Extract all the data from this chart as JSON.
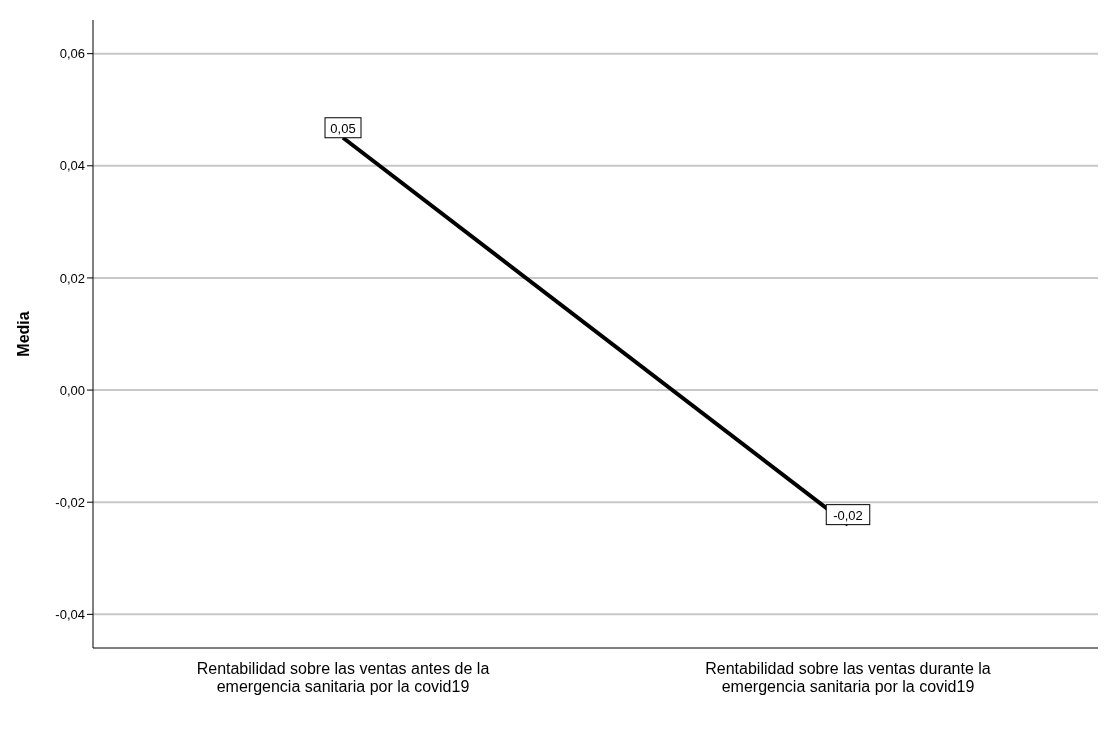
{
  "chart_data": {
    "type": "line",
    "ylabel": "Media",
    "categories": [
      "Rentabilidad sobre las ventas antes de la emergencia sanitaria por la covid19",
      "Rentabilidad sobre las ventas durante la emergencia sanitaria por la covid19"
    ],
    "series": [
      {
        "color": "#000000",
        "values": [
          0.045,
          -0.024
        ],
        "value_labels": [
          "0,05",
          "-0,02"
        ]
      }
    ],
    "ylim": [
      -0.046,
      0.066
    ],
    "yticks": [
      {
        "value": -0.04,
        "label": "-0,04"
      },
      {
        "value": -0.02,
        "label": "-0,02"
      },
      {
        "value": 0,
        "label": "0,00"
      },
      {
        "value": 0.02,
        "label": "0,02"
      },
      {
        "value": 0.04,
        "label": "0,04"
      },
      {
        "value": 0.06,
        "label": "0,06"
      }
    ],
    "grid": "y",
    "marker": "none",
    "line_style": "solid",
    "legend": false
  }
}
